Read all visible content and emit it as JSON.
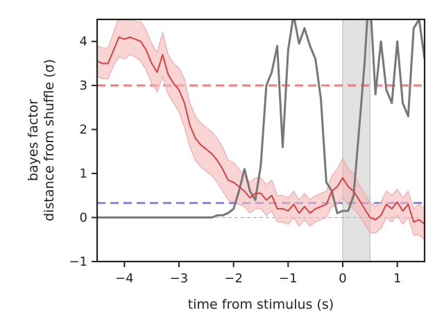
{
  "chart_data": {
    "type": "line",
    "xlabel": "time from stimulus (s)",
    "ylabel_lines": [
      "bayes factor",
      "distance from shuffle (σ)"
    ],
    "xlim": [
      -4.5,
      1.5
    ],
    "ylim": [
      -1,
      4.5
    ],
    "x_ticks": [
      -4,
      -3,
      -2,
      -1,
      0,
      1
    ],
    "x_tick_labels": [
      "−4",
      "−3",
      "−2",
      "−1",
      "0",
      "1"
    ],
    "y_ticks": [
      -1,
      0,
      1,
      2,
      3,
      4
    ],
    "y_tick_labels": [
      "−1",
      "0",
      "1",
      "2",
      "3",
      "4"
    ],
    "grid": false,
    "shaded_region": {
      "x_start": 0,
      "x_end": 0.5,
      "color": "#d9d9d9"
    },
    "reference_lines": [
      {
        "y": 3.0,
        "color": "#f07070",
        "style": "dashed"
      },
      {
        "y": 0.33,
        "color": "#7777ee",
        "style": "dashed"
      },
      {
        "y": 0.0,
        "color": "#aaaaaa",
        "style": "dashed"
      }
    ],
    "series": [
      {
        "color": "#d94040",
        "band_color": "#f4b7b7",
        "x": [
          -4.5,
          -4.4,
          -4.3,
          -4.2,
          -4.1,
          -4.0,
          -3.9,
          -3.8,
          -3.7,
          -3.6,
          -3.5,
          -3.4,
          -3.3,
          -3.2,
          -3.1,
          -3.0,
          -2.9,
          -2.8,
          -2.7,
          -2.6,
          -2.5,
          -2.4,
          -2.3,
          -2.2,
          -2.1,
          -2.0,
          -1.9,
          -1.8,
          -1.7,
          -1.6,
          -1.5,
          -1.4,
          -1.3,
          -1.2,
          -1.1,
          -1.0,
          -0.9,
          -0.8,
          -0.7,
          -0.6,
          -0.5,
          -0.4,
          -0.3,
          -0.2,
          -0.1,
          0.0,
          0.1,
          0.2,
          0.3,
          0.4,
          0.5,
          0.6,
          0.7,
          0.8,
          0.9,
          1.0,
          1.1,
          1.2,
          1.3,
          1.4,
          1.5
        ],
        "y": [
          3.55,
          3.5,
          3.5,
          3.8,
          4.1,
          4.05,
          4.1,
          4.05,
          4.0,
          3.8,
          3.5,
          3.3,
          3.7,
          3.25,
          3.05,
          2.9,
          2.6,
          2.1,
          1.8,
          1.65,
          1.55,
          1.45,
          1.3,
          1.1,
          0.85,
          0.8,
          0.7,
          0.6,
          0.45,
          0.55,
          0.55,
          0.4,
          0.5,
          0.2,
          0.2,
          0.15,
          0.3,
          0.1,
          0.25,
          0.1,
          0.2,
          0.25,
          0.3,
          0.6,
          0.7,
          0.9,
          0.7,
          0.6,
          0.4,
          0.2,
          0.0,
          -0.05,
          0.05,
          0.3,
          0.2,
          0.35,
          0.15,
          0.3,
          -0.1,
          -0.05,
          -0.15
        ],
        "lower": [
          3.2,
          3.15,
          3.15,
          3.45,
          3.65,
          3.6,
          3.7,
          3.65,
          3.55,
          3.35,
          3.05,
          2.85,
          3.2,
          2.8,
          2.6,
          2.4,
          2.05,
          1.6,
          1.3,
          1.15,
          1.05,
          0.95,
          0.8,
          0.6,
          0.4,
          0.35,
          0.3,
          0.25,
          0.1,
          0.2,
          0.2,
          0.05,
          0.15,
          -0.1,
          -0.1,
          -0.15,
          0.0,
          -0.2,
          -0.05,
          -0.2,
          -0.1,
          -0.05,
          0.0,
          0.25,
          0.3,
          0.45,
          0.3,
          0.2,
          0.05,
          -0.15,
          -0.35,
          -0.35,
          -0.25,
          0.0,
          -0.1,
          0.05,
          -0.15,
          0.0,
          -0.4,
          -0.4,
          -0.5
        ],
        "upper": [
          3.9,
          3.85,
          3.85,
          4.2,
          4.55,
          4.5,
          4.55,
          4.45,
          4.45,
          4.25,
          3.95,
          3.75,
          4.2,
          3.7,
          3.5,
          3.4,
          3.15,
          2.6,
          2.3,
          2.15,
          2.05,
          1.95,
          1.8,
          1.6,
          1.3,
          1.25,
          1.1,
          0.95,
          0.8,
          0.9,
          0.9,
          0.75,
          0.85,
          0.5,
          0.5,
          0.45,
          0.6,
          0.4,
          0.55,
          0.4,
          0.5,
          0.55,
          0.6,
          0.95,
          1.1,
          1.35,
          1.1,
          1.0,
          0.75,
          0.55,
          0.35,
          0.25,
          0.35,
          0.6,
          0.5,
          0.65,
          0.45,
          0.6,
          0.2,
          0.3,
          0.2
        ]
      },
      {
        "color": "#777777",
        "x": [
          -4.5,
          -4.0,
          -3.5,
          -3.0,
          -2.5,
          -2.4,
          -2.3,
          -2.2,
          -2.1,
          -2.0,
          -1.9,
          -1.8,
          -1.7,
          -1.6,
          -1.5,
          -1.4,
          -1.3,
          -1.2,
          -1.1,
          -1.0,
          -0.9,
          -0.8,
          -0.7,
          -0.6,
          -0.5,
          -0.4,
          -0.3,
          -0.2,
          -0.1,
          0.0,
          0.1,
          0.2,
          0.3,
          0.4,
          0.45,
          0.5,
          0.6,
          0.7,
          0.8,
          0.9,
          1.0,
          1.1,
          1.2,
          1.3,
          1.4,
          1.5
        ],
        "y": [
          0.0,
          0.0,
          0.0,
          0.0,
          0.0,
          0.0,
          0.05,
          0.05,
          0.1,
          0.2,
          0.6,
          1.1,
          0.6,
          0.4,
          1.2,
          3.0,
          3.3,
          3.9,
          1.6,
          3.8,
          4.6,
          3.95,
          4.3,
          3.9,
          3.6,
          2.7,
          0.8,
          0.6,
          0.1,
          0.15,
          0.15,
          0.5,
          2.0,
          3.5,
          4.5,
          5.0,
          2.8,
          4.0,
          2.9,
          2.6,
          4.0,
          2.6,
          2.3,
          4.3,
          4.5,
          3.6
        ]
      }
    ]
  }
}
